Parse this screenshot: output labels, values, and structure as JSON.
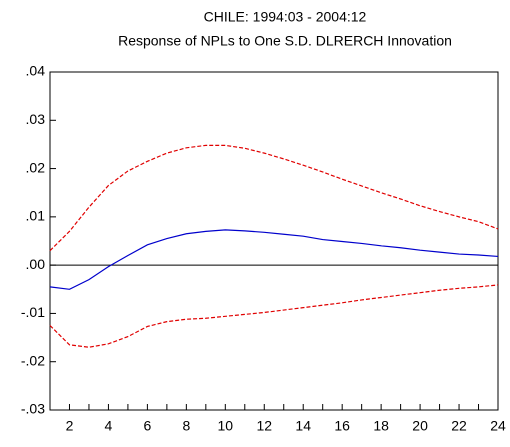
{
  "chart_data": {
    "type": "line",
    "title": "CHILE: 1994:03 - 2004:12",
    "subtitle": "Response of NPLs to One S.D. DLRERCH Innovation",
    "x": [
      1,
      2,
      3,
      4,
      5,
      6,
      7,
      8,
      9,
      10,
      11,
      12,
      13,
      14,
      15,
      16,
      17,
      18,
      19,
      20,
      21,
      22,
      23,
      24
    ],
    "series": [
      {
        "color": "#0000cc",
        "dash": false,
        "values": [
          -0.0045,
          -0.005,
          -0.003,
          -0.0003,
          0.002,
          0.0042,
          0.0055,
          0.0065,
          0.007,
          0.0073,
          0.0071,
          0.0068,
          0.0064,
          0.006,
          0.0053,
          0.0049,
          0.0045,
          0.004,
          0.0036,
          0.0031,
          0.0027,
          0.0023,
          0.0021,
          0.0018
        ]
      },
      {
        "color": "#e00000",
        "dash": true,
        "values": [
          0.003,
          0.007,
          0.012,
          0.0165,
          0.0195,
          0.0215,
          0.0232,
          0.0243,
          0.0248,
          0.0248,
          0.0242,
          0.0232,
          0.022,
          0.0207,
          0.0193,
          0.0178,
          0.0164,
          0.015,
          0.0137,
          0.0123,
          0.0111,
          0.01,
          0.009,
          0.0075
        ]
      },
      {
        "color": "#e00000",
        "dash": true,
        "values": [
          -0.0125,
          -0.0165,
          -0.017,
          -0.0163,
          -0.0148,
          -0.0127,
          -0.0117,
          -0.0112,
          -0.011,
          -0.0106,
          -0.0102,
          -0.0098,
          -0.0093,
          -0.0088,
          -0.0083,
          -0.0078,
          -0.0072,
          -0.0067,
          -0.0062,
          -0.0057,
          -0.0052,
          -0.0048,
          -0.0045,
          -0.0041
        ]
      }
    ],
    "xlim": [
      1,
      24
    ],
    "xticks": [
      2,
      4,
      6,
      8,
      10,
      12,
      14,
      16,
      18,
      20,
      22,
      24
    ],
    "xminorticks": [
      1,
      3,
      5,
      7,
      9,
      11,
      13,
      15,
      17,
      19,
      21,
      23
    ],
    "ylim": [
      -0.03,
      0.04
    ],
    "yticks": [
      {
        "value": -0.03,
        "label": "-.03"
      },
      {
        "value": -0.02,
        "label": "-.02"
      },
      {
        "value": -0.01,
        "label": "-.01"
      },
      {
        "value": 0,
        "label": ".00"
      },
      {
        "value": 0.01,
        "label": ".01"
      },
      {
        "value": 0.02,
        "label": ".02"
      },
      {
        "value": 0.03,
        "label": ".03"
      },
      {
        "value": 0.04,
        "label": ".04"
      }
    ],
    "zero_line": true,
    "grid": false
  }
}
